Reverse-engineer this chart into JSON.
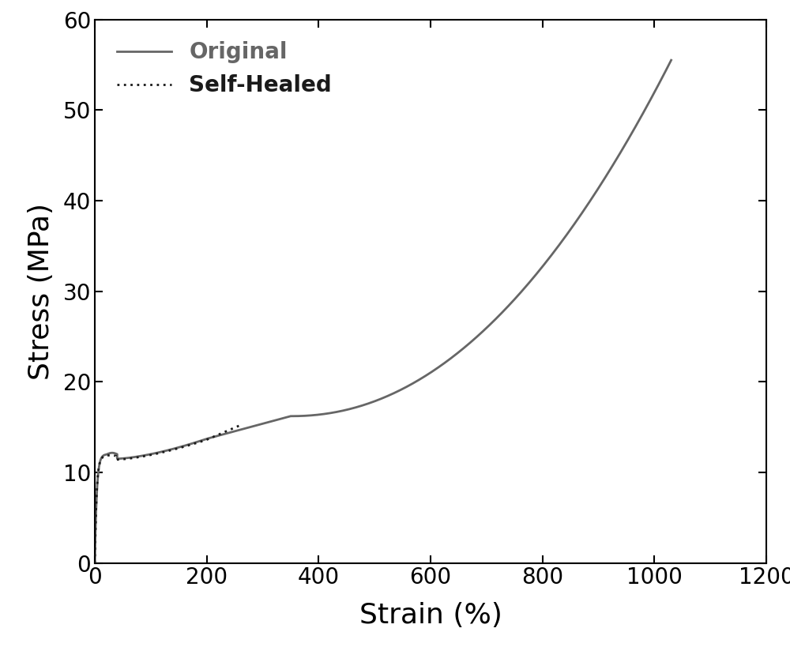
{
  "title": "",
  "xlabel": "Strain (%)",
  "ylabel": "Stress (MPa)",
  "xlim": [
    0,
    1200
  ],
  "ylim": [
    0,
    60
  ],
  "xticks": [
    0,
    200,
    400,
    600,
    800,
    1000,
    1200
  ],
  "yticks": [
    0,
    10,
    20,
    30,
    40,
    50,
    60
  ],
  "original_color": "#666666",
  "selfhealed_color": "#1a1a1a",
  "line_width": 2.0,
  "legend_labels": [
    "Original",
    "Self-Healed"
  ],
  "legend_fontsize": 20,
  "axis_label_fontsize": 26,
  "tick_fontsize": 20,
  "background_color": "#ffffff",
  "figsize": [
    10.0,
    8.19
  ],
  "dpi": 100
}
